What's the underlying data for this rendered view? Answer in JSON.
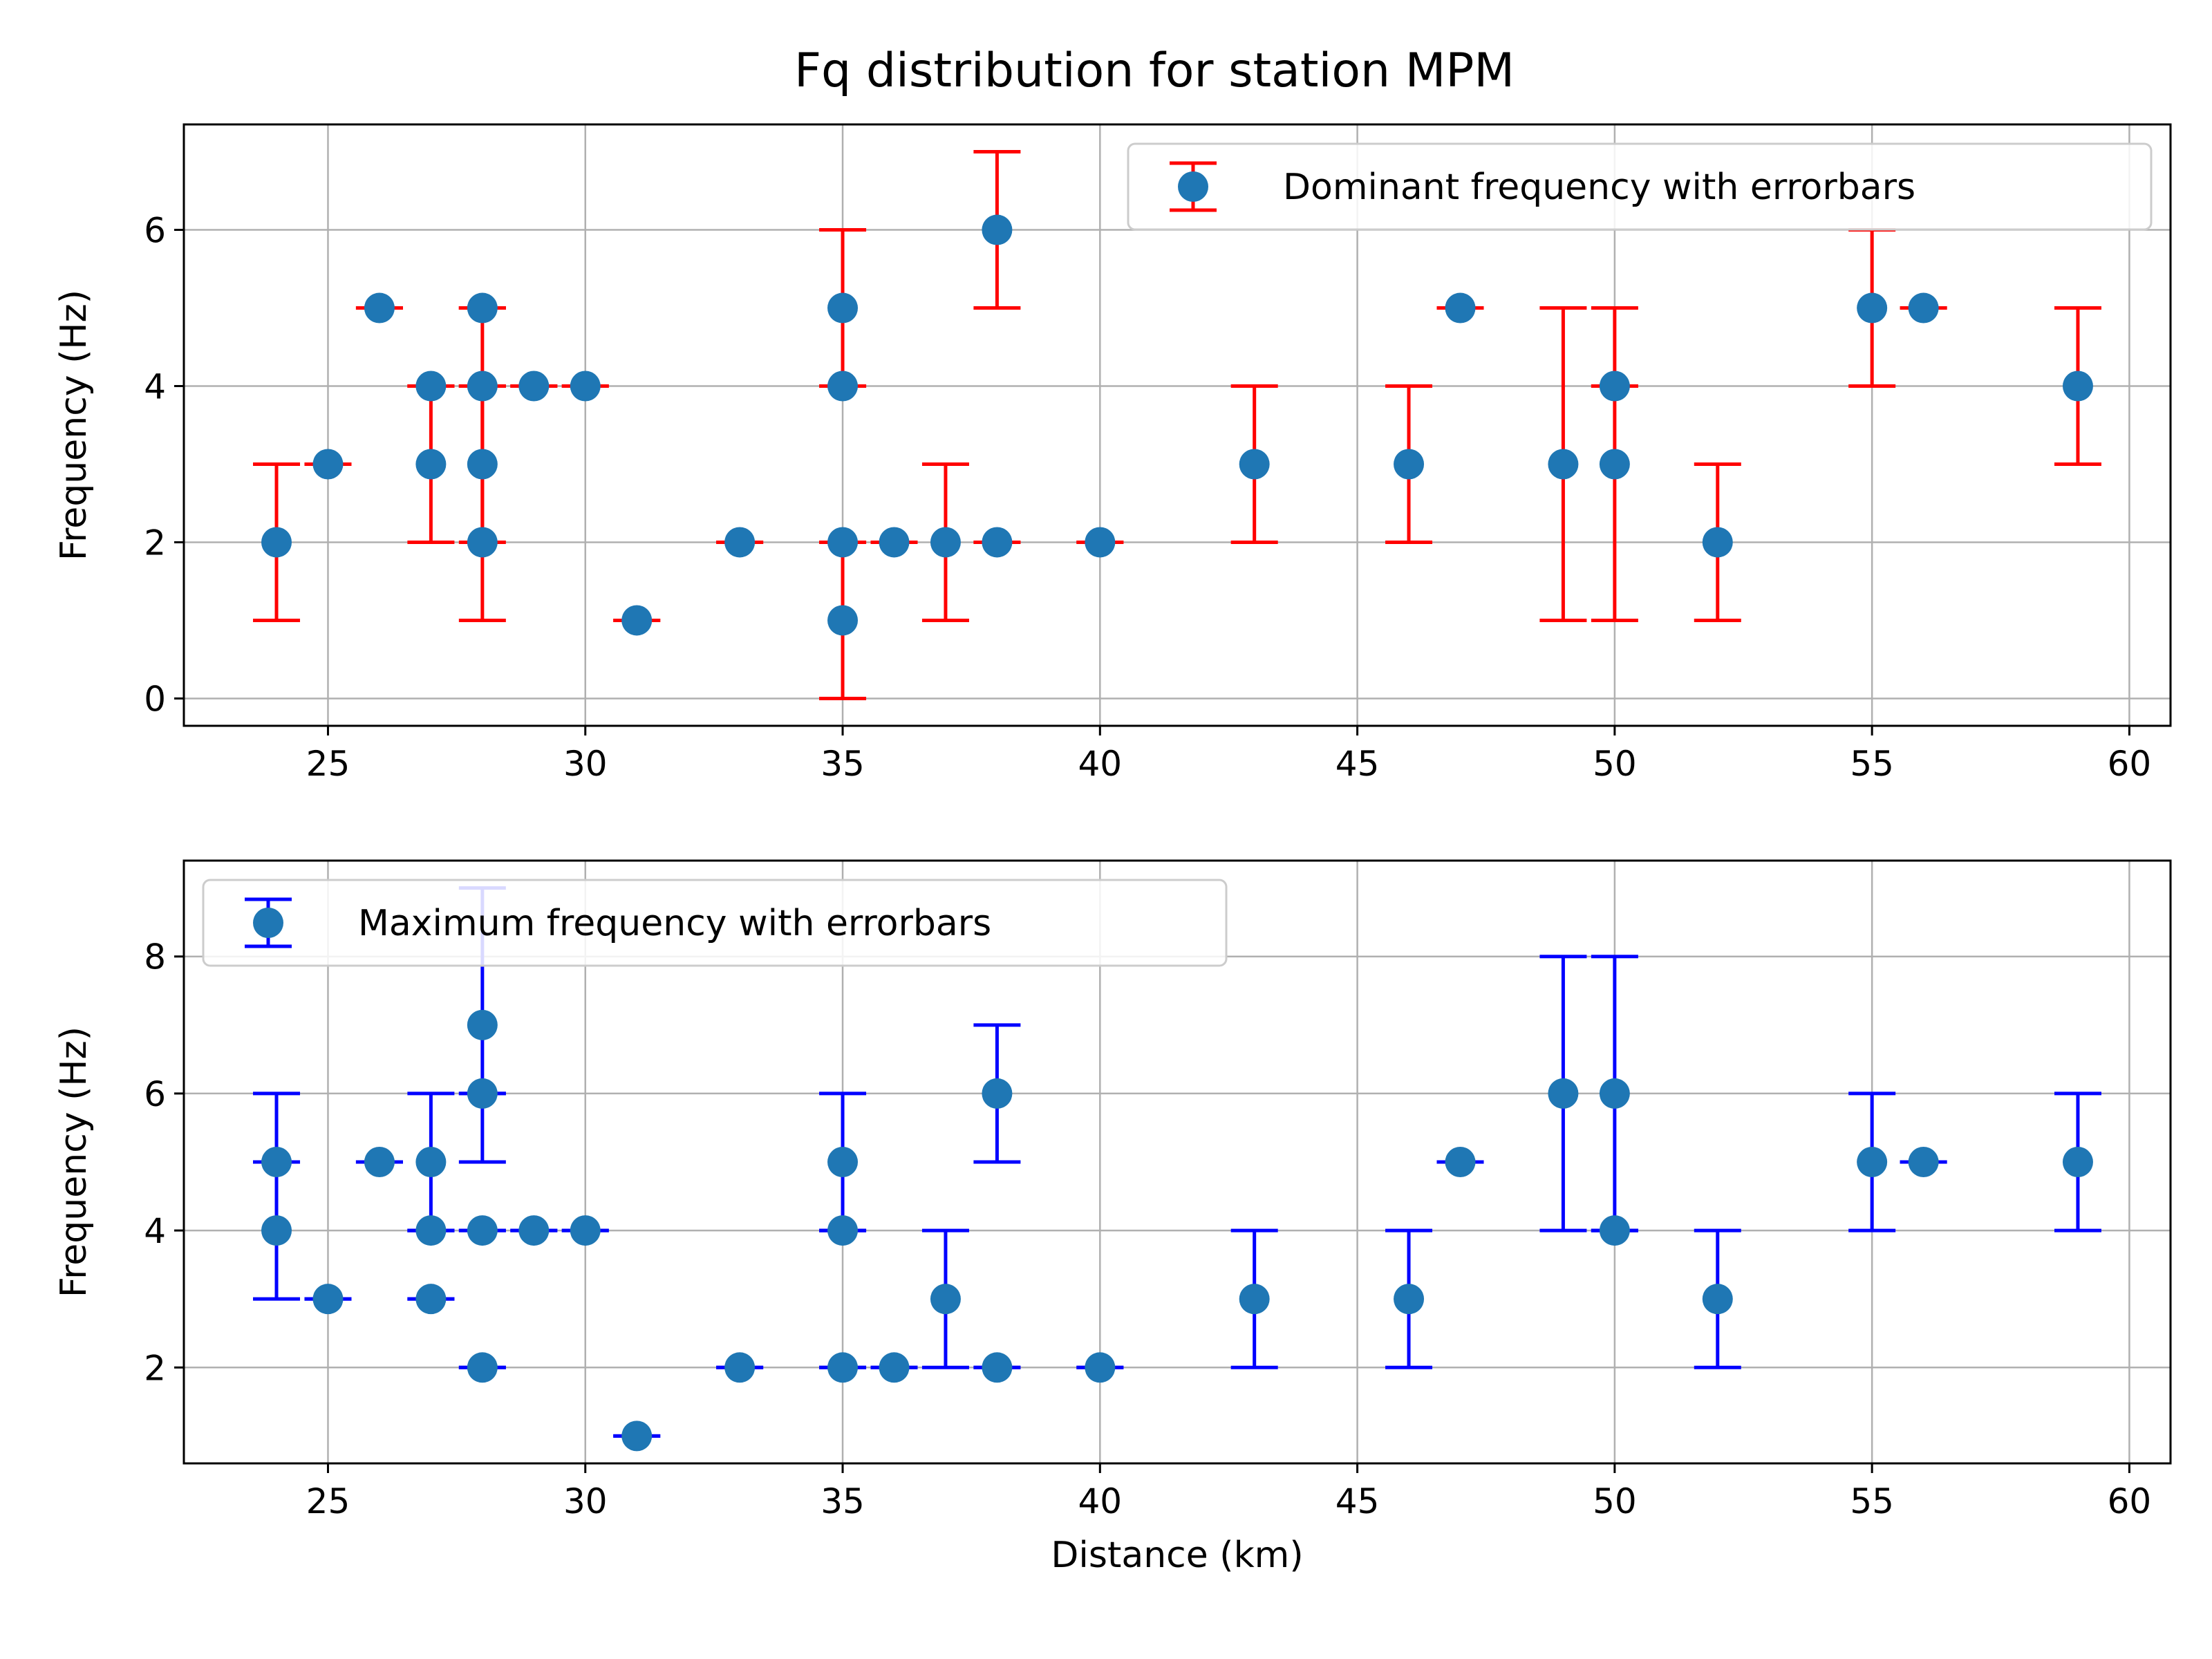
{
  "figure": {
    "title": "Fq distribution for station MPM"
  },
  "chart_data": [
    {
      "type": "scatter",
      "title": "Fq distribution for station MPM",
      "xlabel": "",
      "ylabel": "Frequency (Hz)",
      "xlim": [
        22.2,
        60.8
      ],
      "ylim": [
        -0.35,
        7.35
      ],
      "xticks": [
        25,
        30,
        35,
        40,
        45,
        50,
        55,
        60
      ],
      "yticks": [
        0,
        2,
        4,
        6
      ],
      "grid": true,
      "legend_position": "top-right",
      "marker_color": "#1f77b4",
      "errorbar_color": "#ff0000",
      "series": [
        {
          "name": "Dominant frequency with errorbars",
          "points": [
            {
              "x": 24,
              "y": 2,
              "lo": 1,
              "hi": 3
            },
            {
              "x": 25,
              "y": 3,
              "lo": 3,
              "hi": 3
            },
            {
              "x": 26,
              "y": 5,
              "lo": 5,
              "hi": 5
            },
            {
              "x": 27,
              "y": 4,
              "lo": 4,
              "hi": 4
            },
            {
              "x": 27,
              "y": 3,
              "lo": 2,
              "hi": 4
            },
            {
              "x": 28,
              "y": 5,
              "lo": 5,
              "hi": 5
            },
            {
              "x": 28,
              "y": 4,
              "lo": 4,
              "hi": 4
            },
            {
              "x": 28,
              "y": 3,
              "lo": 2,
              "hi": 4
            },
            {
              "x": 28,
              "y": 2,
              "lo": 1,
              "hi": 5
            },
            {
              "x": 29,
              "y": 4,
              "lo": 4,
              "hi": 4
            },
            {
              "x": 30,
              "y": 4,
              "lo": 4,
              "hi": 4
            },
            {
              "x": 31,
              "y": 1,
              "lo": 1,
              "hi": 1
            },
            {
              "x": 33,
              "y": 2,
              "lo": 2,
              "hi": 2
            },
            {
              "x": 35,
              "y": 5,
              "lo": 4,
              "hi": 6
            },
            {
              "x": 35,
              "y": 4,
              "lo": 4,
              "hi": 4
            },
            {
              "x": 35,
              "y": 2,
              "lo": 2,
              "hi": 2
            },
            {
              "x": 35,
              "y": 1,
              "lo": 0,
              "hi": 2
            },
            {
              "x": 36,
              "y": 2,
              "lo": 2,
              "hi": 2
            },
            {
              "x": 37,
              "y": 2,
              "lo": 1,
              "hi": 3
            },
            {
              "x": 38,
              "y": 6,
              "lo": 5,
              "hi": 7
            },
            {
              "x": 38,
              "y": 2,
              "lo": 2,
              "hi": 2
            },
            {
              "x": 40,
              "y": 2,
              "lo": 2,
              "hi": 2
            },
            {
              "x": 43,
              "y": 3,
              "lo": 2,
              "hi": 4
            },
            {
              "x": 46,
              "y": 3,
              "lo": 2,
              "hi": 4
            },
            {
              "x": 47,
              "y": 5,
              "lo": 5,
              "hi": 5
            },
            {
              "x": 49,
              "y": 3,
              "lo": 1,
              "hi": 5
            },
            {
              "x": 50,
              "y": 4,
              "lo": 4,
              "hi": 5
            },
            {
              "x": 50,
              "y": 3,
              "lo": 1,
              "hi": 4
            },
            {
              "x": 52,
              "y": 2,
              "lo": 1,
              "hi": 3
            },
            {
              "x": 55,
              "y": 5,
              "lo": 4,
              "hi": 6
            },
            {
              "x": 56,
              "y": 5,
              "lo": 5,
              "hi": 5
            },
            {
              "x": 59,
              "y": 4,
              "lo": 3,
              "hi": 5
            }
          ]
        }
      ]
    },
    {
      "type": "scatter",
      "title": "",
      "xlabel": "Distance (km)",
      "ylabel": "Frequency (Hz)",
      "xlim": [
        22.2,
        60.8
      ],
      "ylim": [
        0.6,
        9.4
      ],
      "xticks": [
        25,
        30,
        35,
        40,
        45,
        50,
        55,
        60
      ],
      "yticks": [
        2,
        4,
        6,
        8
      ],
      "grid": true,
      "legend_position": "top-left",
      "marker_color": "#1f77b4",
      "errorbar_color": "#0000ff",
      "series": [
        {
          "name": "Maximum frequency with errorbars",
          "points": [
            {
              "x": 24,
              "y": 5,
              "lo": 5,
              "hi": 5
            },
            {
              "x": 24,
              "y": 4,
              "lo": 3,
              "hi": 6
            },
            {
              "x": 25,
              "y": 3,
              "lo": 3,
              "hi": 3
            },
            {
              "x": 26,
              "y": 5,
              "lo": 5,
              "hi": 5
            },
            {
              "x": 27,
              "y": 5,
              "lo": 4,
              "hi": 6
            },
            {
              "x": 27,
              "y": 4,
              "lo": 4,
              "hi": 4
            },
            {
              "x": 27,
              "y": 3,
              "lo": 3,
              "hi": 3
            },
            {
              "x": 28,
              "y": 7,
              "lo": 5,
              "hi": 9
            },
            {
              "x": 28,
              "y": 6,
              "lo": 6,
              "hi": 6
            },
            {
              "x": 28,
              "y": 4,
              "lo": 4,
              "hi": 4
            },
            {
              "x": 28,
              "y": 2,
              "lo": 2,
              "hi": 2
            },
            {
              "x": 29,
              "y": 4,
              "lo": 4,
              "hi": 4
            },
            {
              "x": 30,
              "y": 4,
              "lo": 4,
              "hi": 4
            },
            {
              "x": 31,
              "y": 1,
              "lo": 1,
              "hi": 1
            },
            {
              "x": 33,
              "y": 2,
              "lo": 2,
              "hi": 2
            },
            {
              "x": 35,
              "y": 5,
              "lo": 4,
              "hi": 6
            },
            {
              "x": 35,
              "y": 4,
              "lo": 4,
              "hi": 4
            },
            {
              "x": 35,
              "y": 2,
              "lo": 2,
              "hi": 2
            },
            {
              "x": 36,
              "y": 2,
              "lo": 2,
              "hi": 2
            },
            {
              "x": 37,
              "y": 3,
              "lo": 2,
              "hi": 4
            },
            {
              "x": 38,
              "y": 6,
              "lo": 5,
              "hi": 7
            },
            {
              "x": 38,
              "y": 2,
              "lo": 2,
              "hi": 2
            },
            {
              "x": 40,
              "y": 2,
              "lo": 2,
              "hi": 2
            },
            {
              "x": 43,
              "y": 3,
              "lo": 2,
              "hi": 4
            },
            {
              "x": 46,
              "y": 3,
              "lo": 2,
              "hi": 4
            },
            {
              "x": 47,
              "y": 5,
              "lo": 5,
              "hi": 5
            },
            {
              "x": 49,
              "y": 6,
              "lo": 4,
              "hi": 8
            },
            {
              "x": 50,
              "y": 6,
              "lo": 4,
              "hi": 8
            },
            {
              "x": 50,
              "y": 4,
              "lo": 4,
              "hi": 4
            },
            {
              "x": 52,
              "y": 3,
              "lo": 2,
              "hi": 4
            },
            {
              "x": 55,
              "y": 5,
              "lo": 4,
              "hi": 6
            },
            {
              "x": 56,
              "y": 5,
              "lo": 5,
              "hi": 5
            },
            {
              "x": 59,
              "y": 5,
              "lo": 4,
              "hi": 6
            }
          ]
        }
      ]
    }
  ]
}
